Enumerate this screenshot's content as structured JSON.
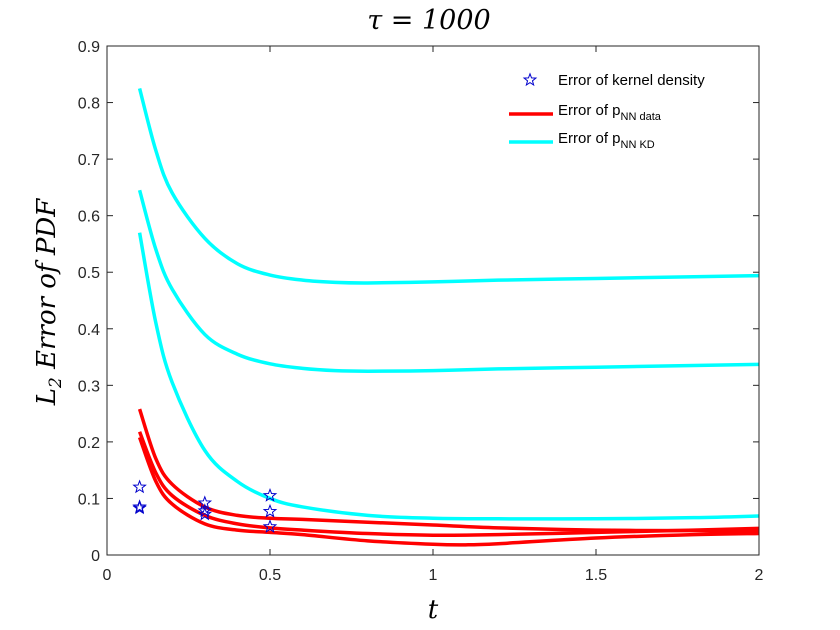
{
  "chart_data": {
    "type": "line",
    "title": "τ = 1000",
    "xlabel": "t",
    "ylabel": "L2 Error of PDF",
    "ylabel_main": "L",
    "ylabel_sub": "2",
    "ylabel_rest": " Error of PDF",
    "xlim": [
      0,
      2
    ],
    "ylim": [
      0,
      0.9
    ],
    "xticks": [
      0,
      0.5,
      1,
      1.5,
      2
    ],
    "xtick_labels": [
      "0",
      "0.5",
      "1",
      "1.5",
      "2"
    ],
    "yticks": [
      0,
      0.1,
      0.2,
      0.3,
      0.4,
      0.5,
      0.6,
      0.7,
      0.8,
      0.9
    ],
    "ytick_labels": [
      "0",
      "0.1",
      "0.2",
      "0.3",
      "0.4",
      "0.5",
      "0.6",
      "0.7",
      "0.8",
      "0.9"
    ],
    "grid": false,
    "legend_position": "top-right",
    "legend": [
      {
        "label": "Error of kernel density",
        "main": "Error of kernel density",
        "sub": "",
        "marker": "star",
        "color": "#0000cc"
      },
      {
        "label": "Error of pNN data",
        "main": "Error of p",
        "sub": "NN data",
        "marker": "line",
        "color": "#ff0000"
      },
      {
        "label": "Error of pNN KD",
        "main": "Error of p",
        "sub": "NN KD",
        "marker": "line",
        "color": "#00ffff"
      }
    ],
    "series": [
      {
        "name": "Error of pNN KD 1",
        "color": "#00ffff",
        "x": [
          0.1,
          0.15,
          0.2,
          0.3,
          0.4,
          0.5,
          0.6,
          0.7,
          0.8,
          1.0,
          1.2,
          1.5,
          1.8,
          2.0
        ],
        "y": [
          0.825,
          0.715,
          0.64,
          0.56,
          0.515,
          0.495,
          0.486,
          0.482,
          0.481,
          0.483,
          0.486,
          0.489,
          0.492,
          0.494
        ]
      },
      {
        "name": "Error of pNN KD 2",
        "color": "#00ffff",
        "x": [
          0.1,
          0.15,
          0.2,
          0.3,
          0.4,
          0.5,
          0.6,
          0.7,
          0.8,
          1.0,
          1.2,
          1.5,
          1.8,
          2.0
        ],
        "y": [
          0.645,
          0.54,
          0.47,
          0.39,
          0.355,
          0.338,
          0.33,
          0.326,
          0.325,
          0.326,
          0.329,
          0.332,
          0.335,
          0.337
        ]
      },
      {
        "name": "Error of pNN KD 3",
        "color": "#00ffff",
        "x": [
          0.1,
          0.15,
          0.2,
          0.3,
          0.4,
          0.5,
          0.6,
          0.8,
          1.0,
          1.2,
          1.5,
          1.8,
          2.0
        ],
        "y": [
          0.57,
          0.41,
          0.305,
          0.185,
          0.13,
          0.1,
          0.085,
          0.07,
          0.065,
          0.064,
          0.064,
          0.066,
          0.069
        ]
      },
      {
        "name": "Error of pNN data 1",
        "color": "#ff0000",
        "x": [
          0.1,
          0.15,
          0.2,
          0.3,
          0.4,
          0.5,
          0.6,
          0.8,
          1.0,
          1.2,
          1.5,
          1.8,
          2.0
        ],
        "y": [
          0.258,
          0.17,
          0.125,
          0.085,
          0.07,
          0.065,
          0.063,
          0.058,
          0.053,
          0.048,
          0.044,
          0.043,
          0.042
        ]
      },
      {
        "name": "Error of pNN data 2",
        "color": "#ff0000",
        "x": [
          0.1,
          0.15,
          0.2,
          0.3,
          0.4,
          0.5,
          0.6,
          0.8,
          1.0,
          1.2,
          1.5,
          1.8,
          2.0
        ],
        "y": [
          0.218,
          0.145,
          0.105,
          0.07,
          0.055,
          0.048,
          0.044,
          0.038,
          0.035,
          0.036,
          0.04,
          0.044,
          0.047
        ]
      },
      {
        "name": "Error of pNN data 3",
        "color": "#ff0000",
        "x": [
          0.1,
          0.15,
          0.2,
          0.3,
          0.4,
          0.5,
          0.6,
          0.8,
          1.0,
          1.1,
          1.2,
          1.5,
          1.8,
          2.0
        ],
        "y": [
          0.208,
          0.13,
          0.09,
          0.055,
          0.044,
          0.04,
          0.036,
          0.025,
          0.019,
          0.018,
          0.02,
          0.03,
          0.036,
          0.038
        ]
      }
    ],
    "scatter": {
      "name": "Error of kernel density",
      "color": "#0000cc",
      "x": [
        0.1,
        0.1,
        0.1,
        0.3,
        0.3,
        0.3,
        0.5,
        0.5,
        0.5
      ],
      "y": [
        0.12,
        0.085,
        0.083,
        0.092,
        0.078,
        0.072,
        0.105,
        0.077,
        0.05
      ]
    }
  }
}
